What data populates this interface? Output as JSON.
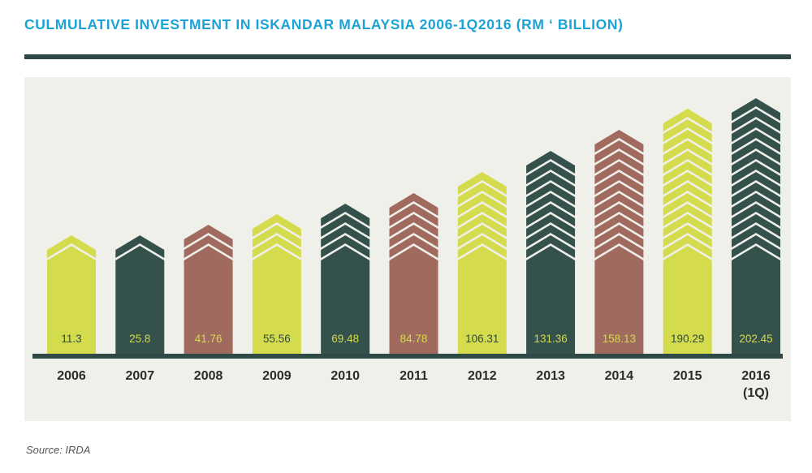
{
  "title": "CULMULATIVE INVESTMENT IN ISKANDAR MALAYSIA 2006-1Q2016 (RM ‘ BILLION)",
  "source": "Source: IRDA",
  "colors": {
    "lime": "#d4db4c",
    "dark": "#34514b",
    "brown": "#a06a5f",
    "value_text_on_dark": "#d4db4c",
    "value_text_on_light": "#2f4a46",
    "rule": "#2f4a46",
    "panel": "#f0f0eb"
  },
  "chart_data": {
    "type": "bar",
    "title": "CULMULATIVE INVESTMENT IN ISKANDAR MALAYSIA 2006-1Q2016 (RM ‘ BILLION)",
    "categories": [
      "2006",
      "2007",
      "2008",
      "2009",
      "2010",
      "2011",
      "2012",
      "2013",
      "2014",
      "2015",
      "2016 (1Q)"
    ],
    "category_lines": [
      [
        "2006"
      ],
      [
        "2007"
      ],
      [
        "2008"
      ],
      [
        "2009"
      ],
      [
        "2010"
      ],
      [
        "2011"
      ],
      [
        "2012"
      ],
      [
        "2013"
      ],
      [
        "2014"
      ],
      [
        "2015"
      ],
      [
        "2016",
        "(1Q)"
      ]
    ],
    "values": [
      11.3,
      25.8,
      41.76,
      55.56,
      69.48,
      84.78,
      106.31,
      131.36,
      158.13,
      190.29,
      202.45
    ],
    "value_labels": [
      "11.3",
      "25.8",
      "41.76",
      "55.56",
      "69.48",
      "84.78",
      "106.31",
      "131.36",
      "158.13",
      "190.29",
      "202.45"
    ],
    "bar_colors": [
      "lime",
      "dark",
      "brown",
      "lime",
      "dark",
      "brown",
      "lime",
      "dark",
      "brown",
      "lime",
      "dark"
    ],
    "xlabel": "",
    "ylabel": "",
    "grid": false,
    "legend": "none"
  }
}
